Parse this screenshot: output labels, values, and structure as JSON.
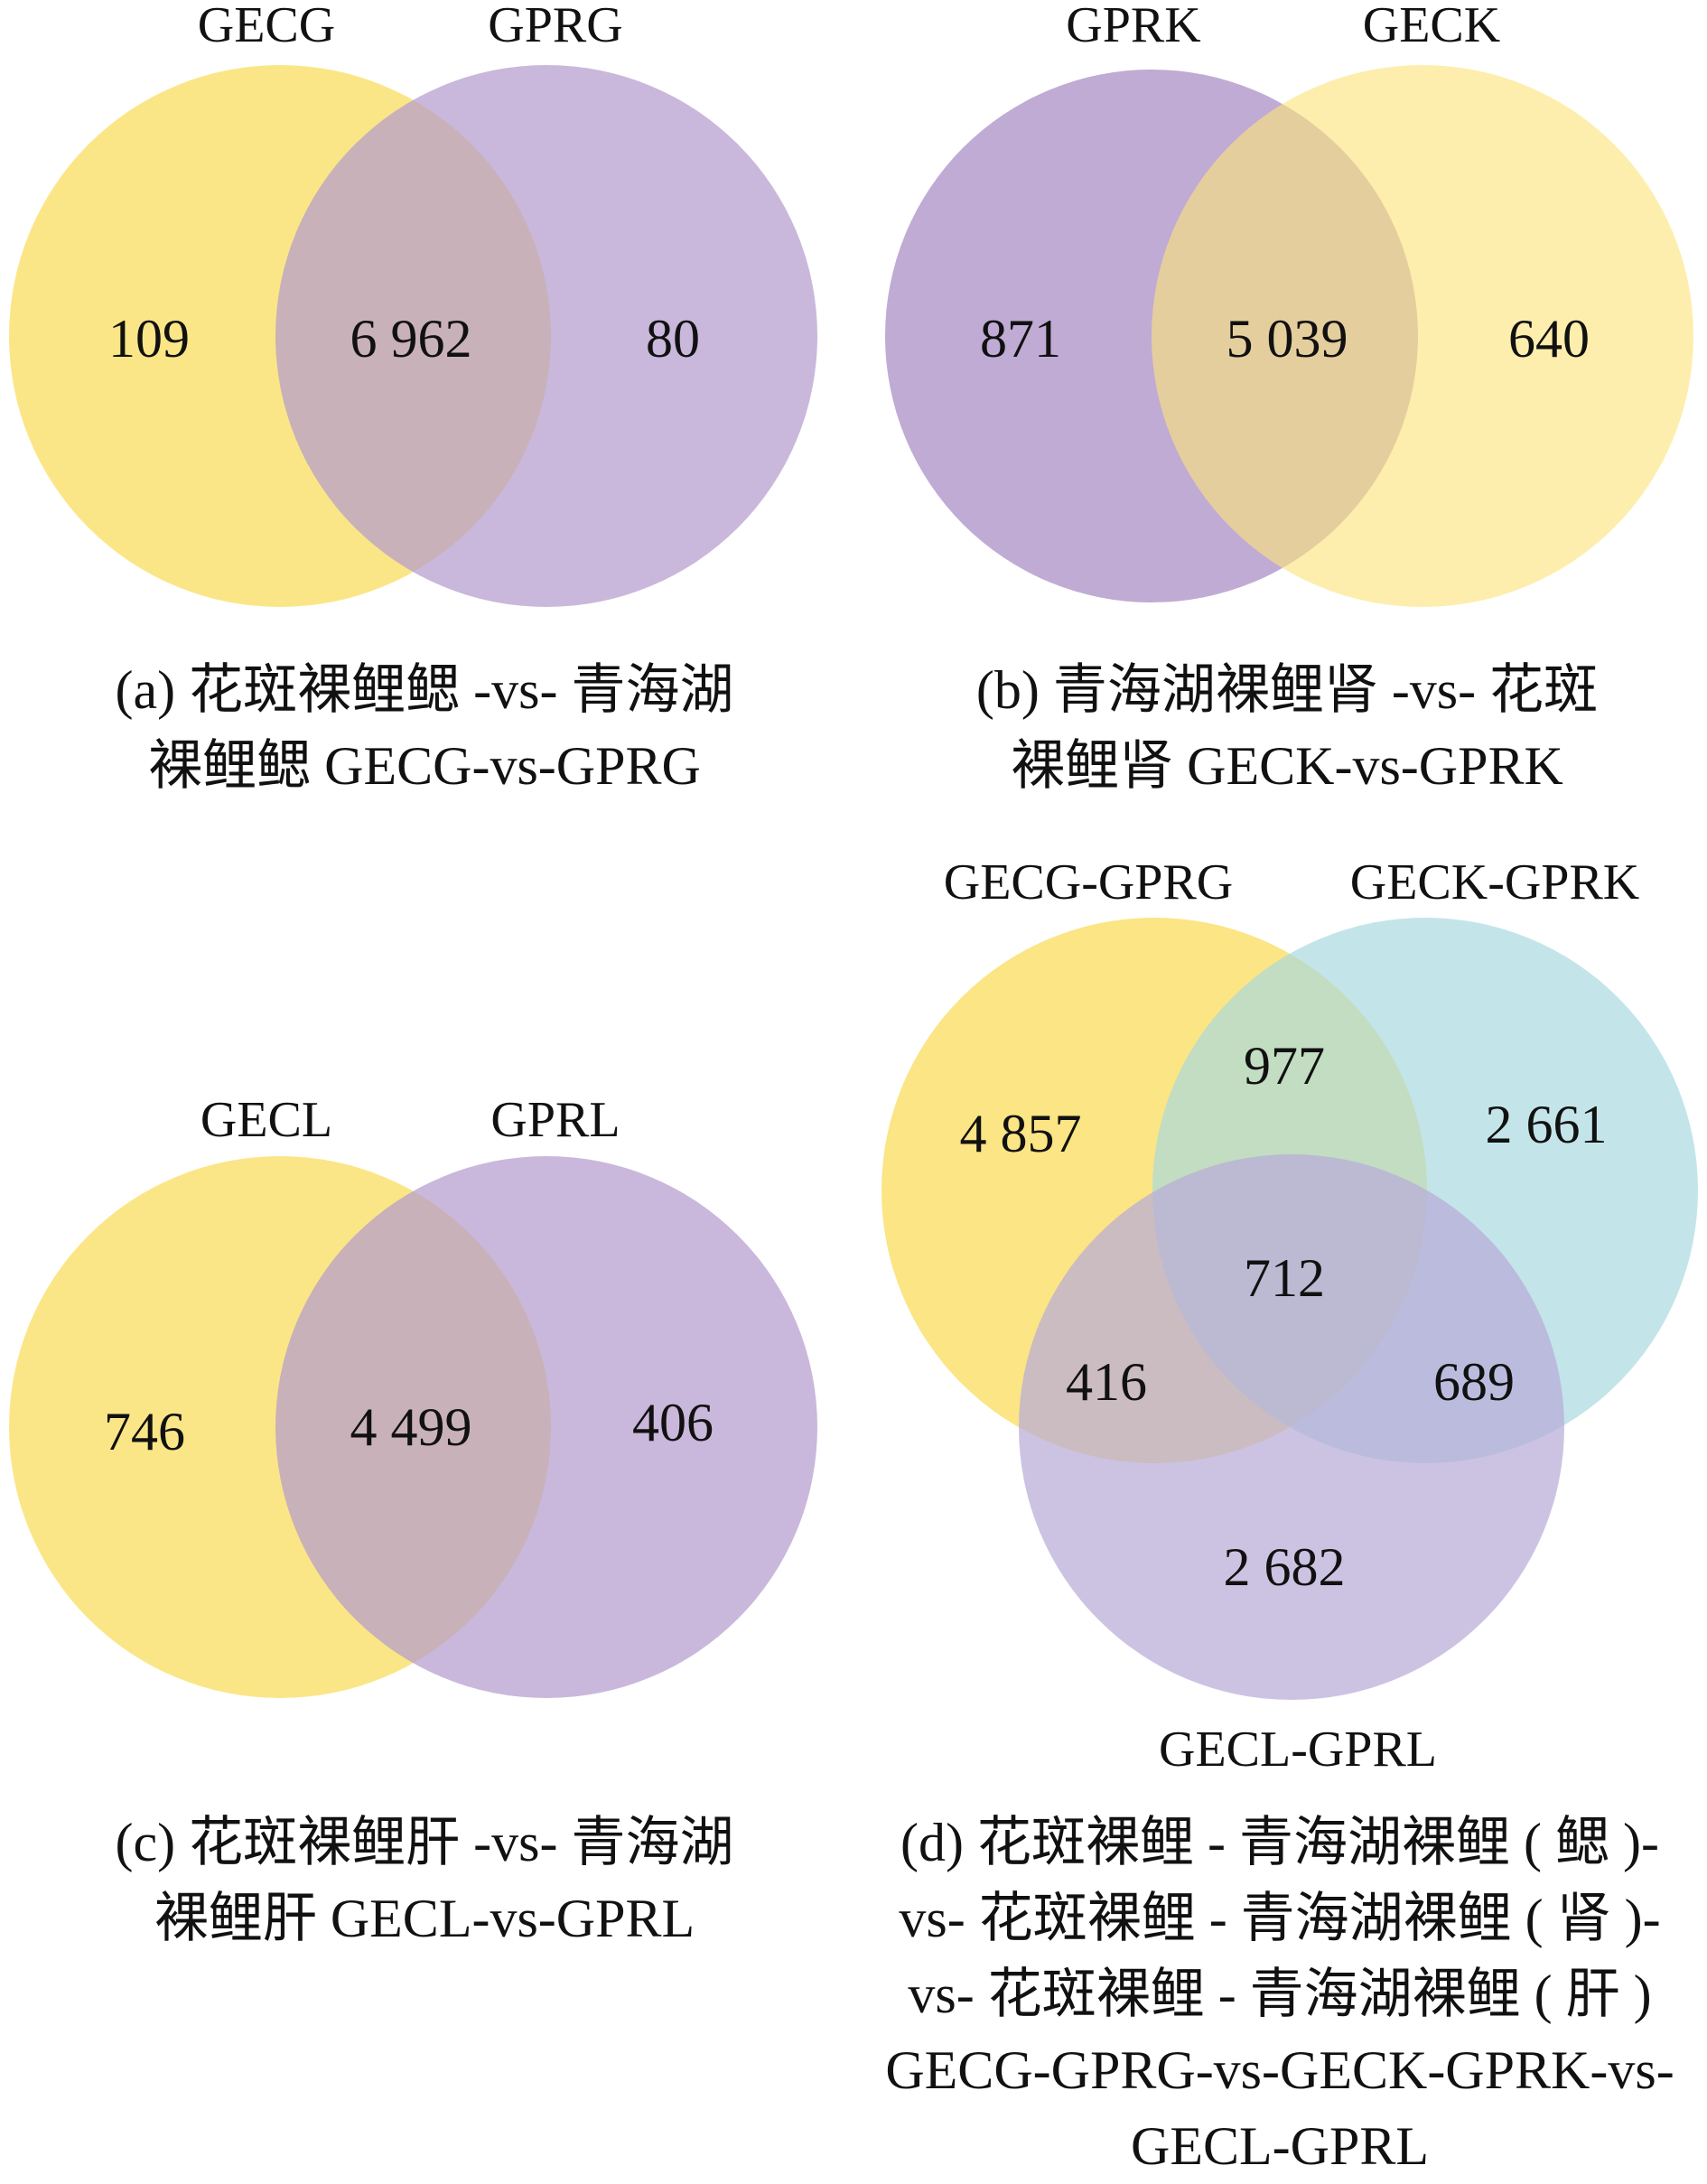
{
  "panels": {
    "a": {
      "sets": [
        "GECG",
        "GPRG"
      ],
      "counts": {
        "left_only": "109",
        "both": "6 962",
        "right_only": "80"
      },
      "caption": [
        "(a) 花斑裸鲤鳃 -vs- 青海湖",
        "裸鲤鳃 GECG-vs-GPRG"
      ]
    },
    "b": {
      "sets": [
        "GPRK",
        "GECK"
      ],
      "counts": {
        "left_only": "871",
        "both": "5 039",
        "right_only": "640"
      },
      "caption": [
        "(b) 青海湖裸鲤肾 -vs- 花斑",
        "裸鲤肾 GECK-vs-GPRK"
      ]
    },
    "c": {
      "sets": [
        "GECL",
        "GPRL"
      ],
      "counts": {
        "left_only": "746",
        "both": "4 499",
        "right_only": "406"
      },
      "caption": [
        "(c) 花斑裸鲤肝 -vs- 青海湖",
        "裸鲤肝 GECL-vs-GPRL"
      ]
    },
    "d": {
      "sets": [
        "GECG-GPRG",
        "GECK-GPRK",
        "GECL-GPRL"
      ],
      "counts": {
        "a_only": "4 857",
        "b_only": "2 661",
        "c_only": "2 682",
        "ab": "977",
        "ac": "416",
        "bc": "689",
        "abc": "712"
      },
      "caption": [
        "(d) 花斑裸鲤 - 青海湖裸鲤 ( 鳃 )-",
        "vs- 花斑裸鲤 - 青海湖裸鲤 ( 肾 )-",
        "vs- 花斑裸鲤 - 青海湖裸鲤 ( 肝 )",
        "GECG-GPRG-vs-GECK-GPRK-vs-",
        "GECL-GPRL"
      ]
    }
  },
  "colors": {
    "yellow": "#fbe37a",
    "purple": "#b49ccd",
    "cyan": "#a6d9df",
    "lavender": "#b9acd8"
  }
}
